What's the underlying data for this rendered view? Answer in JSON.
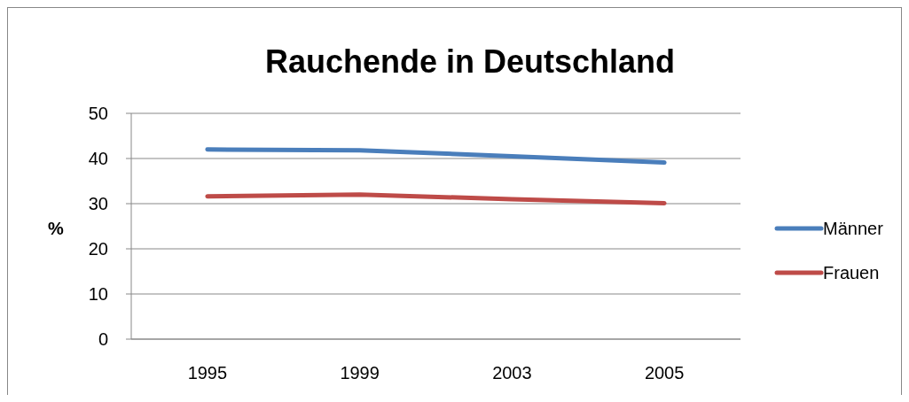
{
  "chart_data": {
    "type": "line",
    "title": "Rauchende in Deutschland",
    "ylabel": "%",
    "categories": [
      "1995",
      "1999",
      "2003",
      "2005"
    ],
    "series": [
      {
        "name": "Männer",
        "color": "#4a7ebb",
        "values": [
          42.0,
          41.8,
          40.5,
          39.1
        ]
      },
      {
        "name": "Frauen",
        "color": "#be4b48",
        "values": [
          31.6,
          32.0,
          31.0,
          30.1
        ]
      }
    ],
    "ylim": [
      0,
      50
    ],
    "yticks": [
      0,
      10,
      20,
      30,
      40,
      50
    ],
    "grid": "y",
    "legend": "right",
    "marker": "none",
    "line_style": "solid"
  }
}
